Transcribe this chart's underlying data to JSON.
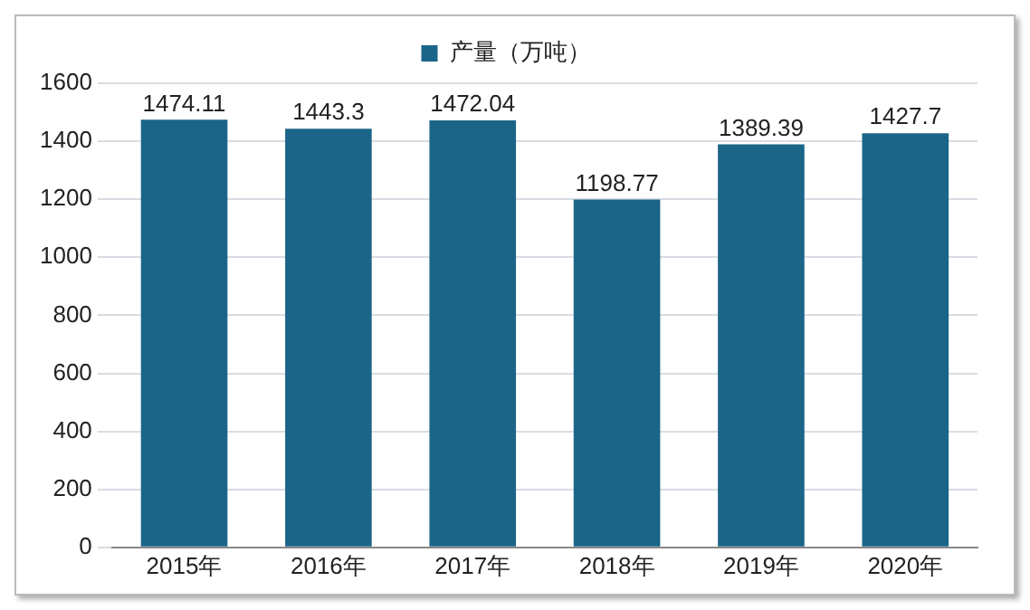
{
  "chart_data": {
    "type": "bar",
    "categories": [
      "2015年",
      "2016年",
      "2017年",
      "2018年",
      "2019年",
      "2020年"
    ],
    "series": [
      {
        "name": "产量（万吨）",
        "color": "#1b6588",
        "values": [
          1474.11,
          1443.3,
          1472.04,
          1198.77,
          1389.39,
          1427.7
        ]
      }
    ],
    "ylim": [
      0,
      1600
    ],
    "yticks": [
      0,
      200,
      400,
      600,
      800,
      1000,
      1200,
      1400,
      1600
    ],
    "grid": "y",
    "legend": "top",
    "data_labels": true
  }
}
